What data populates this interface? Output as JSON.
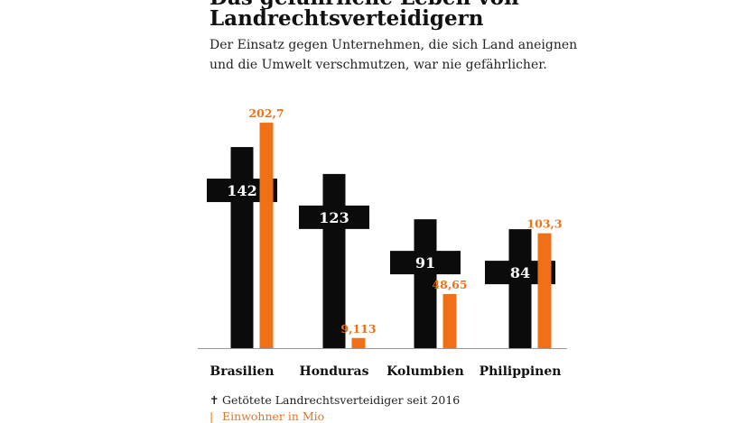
{
  "title_lines": [
    "Das gefährliche Leben von",
    "Landrechtsverteidigern"
  ],
  "subtitle_lines": [
    "Der Einsatz gegen Unternehmen, die sich Land aneignen",
    "und die Umwelt verschmutzen, war nie gefährlicher."
  ],
  "colors": {
    "killed": "#0b0b0b",
    "population": "#f07018",
    "label_on_dark": "#ffffff"
  },
  "legend": {
    "killed": {
      "icon": "cross-icon",
      "symbol": "✝",
      "label": "Getötete Landrechtsverteidiger seit 2016"
    },
    "population": {
      "icon": "orange-bar-icon",
      "symbol": "|",
      "label": "Einwohner in Mio"
    }
  },
  "chart_data": {
    "type": "bar",
    "categories": [
      "Brasilien",
      "Honduras",
      "Kolumbien",
      "Philippinen"
    ],
    "series": [
      {
        "name": "Getötete Landrechtsverteidiger seit 2016",
        "values": [
          142,
          123,
          91,
          84
        ],
        "labels": [
          "142",
          "123",
          "91",
          "84"
        ]
      },
      {
        "name": "Einwohner in Mio",
        "values": [
          202.7,
          9.113,
          48.65,
          103.3
        ],
        "labels": [
          "202,7",
          "9,113",
          "48,65",
          "103,3"
        ]
      }
    ]
  }
}
